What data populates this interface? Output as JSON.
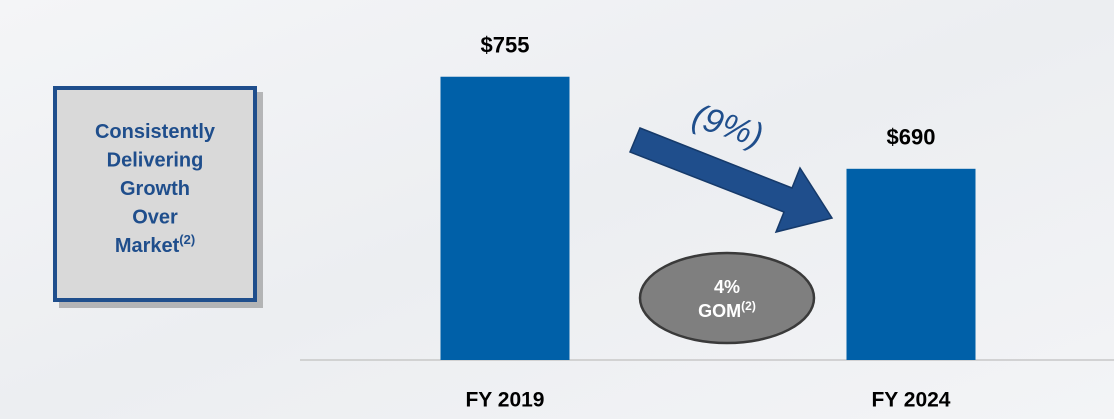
{
  "chart_data": {
    "type": "bar",
    "categories": [
      "FY 2019",
      "FY 2024"
    ],
    "values": [
      755,
      690
    ],
    "value_labels": [
      "$755",
      "$690"
    ],
    "color": "#0060a8",
    "ylim": [
      555,
      800
    ],
    "change_annotation": "(9%)",
    "callout_box": {
      "lines": [
        "Consistently",
        "Delivering",
        "Growth",
        "Over",
        "Market"
      ],
      "superscript": "(2)"
    },
    "ellipse": {
      "lines": [
        "4%",
        "GOM"
      ],
      "superscript": "(2)"
    }
  }
}
